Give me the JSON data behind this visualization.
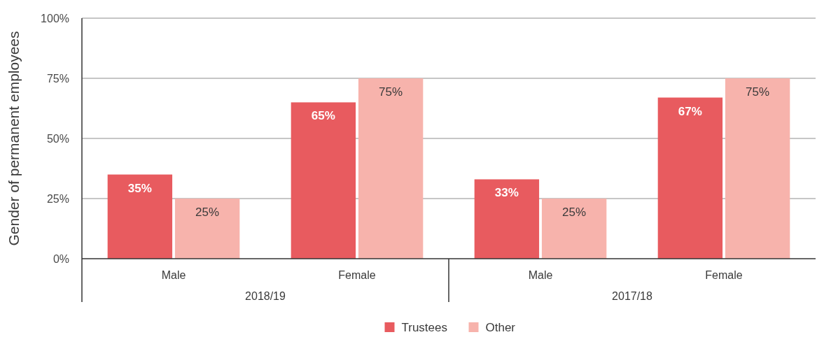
{
  "chart_data": {
    "type": "bar",
    "ylabel": "Gender of permanent employees",
    "categories": [
      "Male",
      "Female",
      "Male",
      "Female"
    ],
    "annotations": [
      "2018/19",
      "2017/18"
    ],
    "series": [
      {
        "name": "Trustees",
        "color": "#e85b5f",
        "values": [
          35,
          65,
          33,
          67
        ],
        "value_labels": [
          "35%",
          "65%",
          "33%",
          "67%"
        ]
      },
      {
        "name": "Other",
        "color": "#f7b3ac",
        "values": [
          25,
          75,
          25,
          75
        ],
        "value_labels": [
          "25%",
          "75%",
          "25%",
          "75%"
        ]
      }
    ],
    "ylim": [
      0,
      100
    ],
    "yticks": [
      {
        "value": 0,
        "label": "0%"
      },
      {
        "value": 25,
        "label": "25%"
      },
      {
        "value": 50,
        "label": "50%"
      },
      {
        "value": 75,
        "label": "75%"
      },
      {
        "value": 100,
        "label": "100%"
      }
    ],
    "grid": "y",
    "legend": "bottom"
  }
}
